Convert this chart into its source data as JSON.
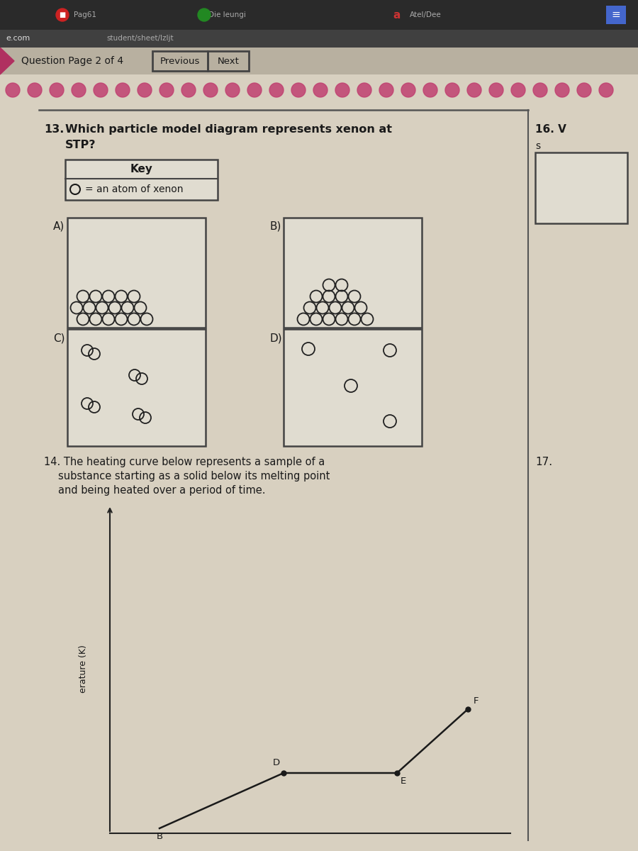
{
  "bg_color": "#888070",
  "browser_bar_color": "#2a2a2a",
  "url_bar_color": "#333333",
  "nav_bar_color": "#b8b0a0",
  "content_bg": "#d8d0c0",
  "box_bg": "#e0dcd0",
  "box_edge": "#444444",
  "text_color": "#1a1a1a",
  "pink_bead_color": "#c04070",
  "sep_line_color": "#555555",
  "q13_label": "13.",
  "q13_text1": "Which particle model diagram represents xenon at",
  "q13_text2": "STP?",
  "key_title": "Key",
  "key_entry": "= an atom of xenon",
  "q14_text1": "14. The heating curve below represents a sample of a",
  "q14_text2": "substance starting as a solid below its melting point",
  "q14_text3": "and being heated over a period of time.",
  "ylabel": "erature (K)",
  "q16_label": "16. V",
  "q16_sub": "s",
  "q17_label": "17.",
  "nav_text": "Question Page 2 of 4",
  "prev_text": "Previous",
  "next_text": "Next",
  "url_left": "e.com",
  "url_right": "student/sheet/lzljt"
}
